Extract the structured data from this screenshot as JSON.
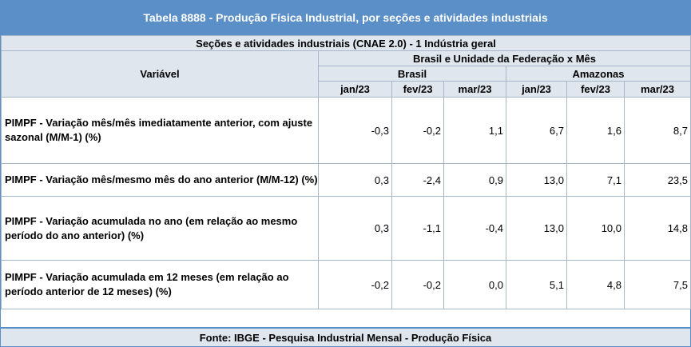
{
  "title": "Tabela 8888 - Produção Física Industrial, por seções e atividades industriais",
  "section": "Seções e atividades industriais (CNAE 2.0) - 1 Indústria geral",
  "variable_header": "Variável",
  "group_header": "Brasil e Unidade da Federação x Mês",
  "regions": [
    "Brasil",
    "Amazonas"
  ],
  "months": [
    "jan/23",
    "fev/23",
    "mar/23",
    "jan/23",
    "fev/23",
    "mar/23"
  ],
  "rows": [
    {
      "label": "PIMPF - Variação mês/mês imediatamente anterior, com ajuste sazonal (M/M-1) (%)",
      "values": [
        "-0,3",
        "-0,2",
        "1,1",
        "6,7",
        "1,6",
        "8,7"
      ]
    },
    {
      "label": "PIMPF - Variação mês/mesmo mês do ano anterior (M/M-12) (%)",
      "values": [
        "0,3",
        "-2,4",
        "0,9",
        "13,0",
        "7,1",
        "23,5"
      ]
    },
    {
      "label": "PIMPF - Variação acumulada no ano (em relação ao mesmo período do ano anterior) (%)",
      "values": [
        "0,3",
        "-1,1",
        "-0,4",
        "13,0",
        "10,0",
        "14,8"
      ]
    },
    {
      "label": "PIMPF - Variação acumulada em 12 meses (em relação ao período anterior de 12 meses) (%)",
      "values": [
        "-0,2",
        "-0,2",
        "0,0",
        "5,1",
        "4,8",
        "7,5"
      ]
    }
  ],
  "footer": "Fonte: IBGE - Pesquisa Industrial Mensal - Produção Física"
}
